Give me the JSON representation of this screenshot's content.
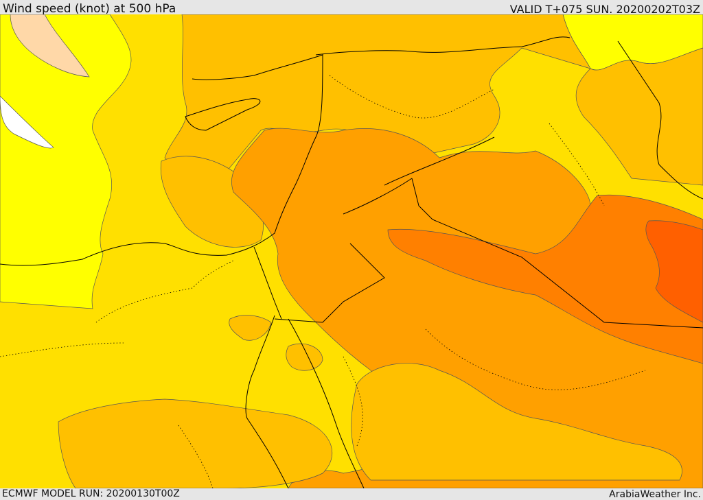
{
  "header": {
    "title": "Wind speed (knot) at 500 hPa",
    "valid": "VALID T+075 SUN. 20200202T03Z"
  },
  "footer": {
    "model_run": "ECMWF MODEL RUN: 20200130T00Z",
    "credit": "ArabiaWeather Inc."
  },
  "map": {
    "variable": "wind speed at 500 hPa",
    "palette": {
      "white": "#ffffff",
      "yellow": "#ffff00",
      "light_gold": "#ffe000",
      "gold": "#ffc000",
      "orange": "#ffa000",
      "dark_orange": "#ff8000",
      "red_orange": "#ff6000",
      "peach": "#ffd8a8"
    }
  }
}
